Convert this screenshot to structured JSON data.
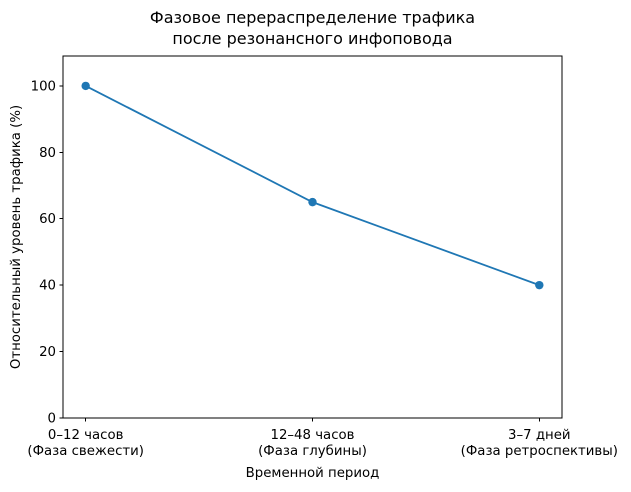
{
  "chart_data": {
    "type": "line",
    "title_lines": [
      "Фазовое перераспределение трафика",
      "после резонансного инфоповода"
    ],
    "xlabel": "Временной период",
    "ylabel": "Относительный уровень трафика (%)",
    "categories": [
      "0–12 часов\n(Фаза свежести)",
      "12–48 часов\n(Фаза глубины)",
      "3–7 дней\n(Фаза ретроспективы)"
    ],
    "values": [
      100,
      65,
      40
    ],
    "yticks": [
      0,
      20,
      40,
      60,
      80,
      100
    ],
    "ylim": [
      0,
      109
    ],
    "grid": false,
    "legend": "none",
    "line_color": "#1f77b4",
    "marker": "circle",
    "axis_color": "#000000",
    "background": "#ffffff"
  }
}
